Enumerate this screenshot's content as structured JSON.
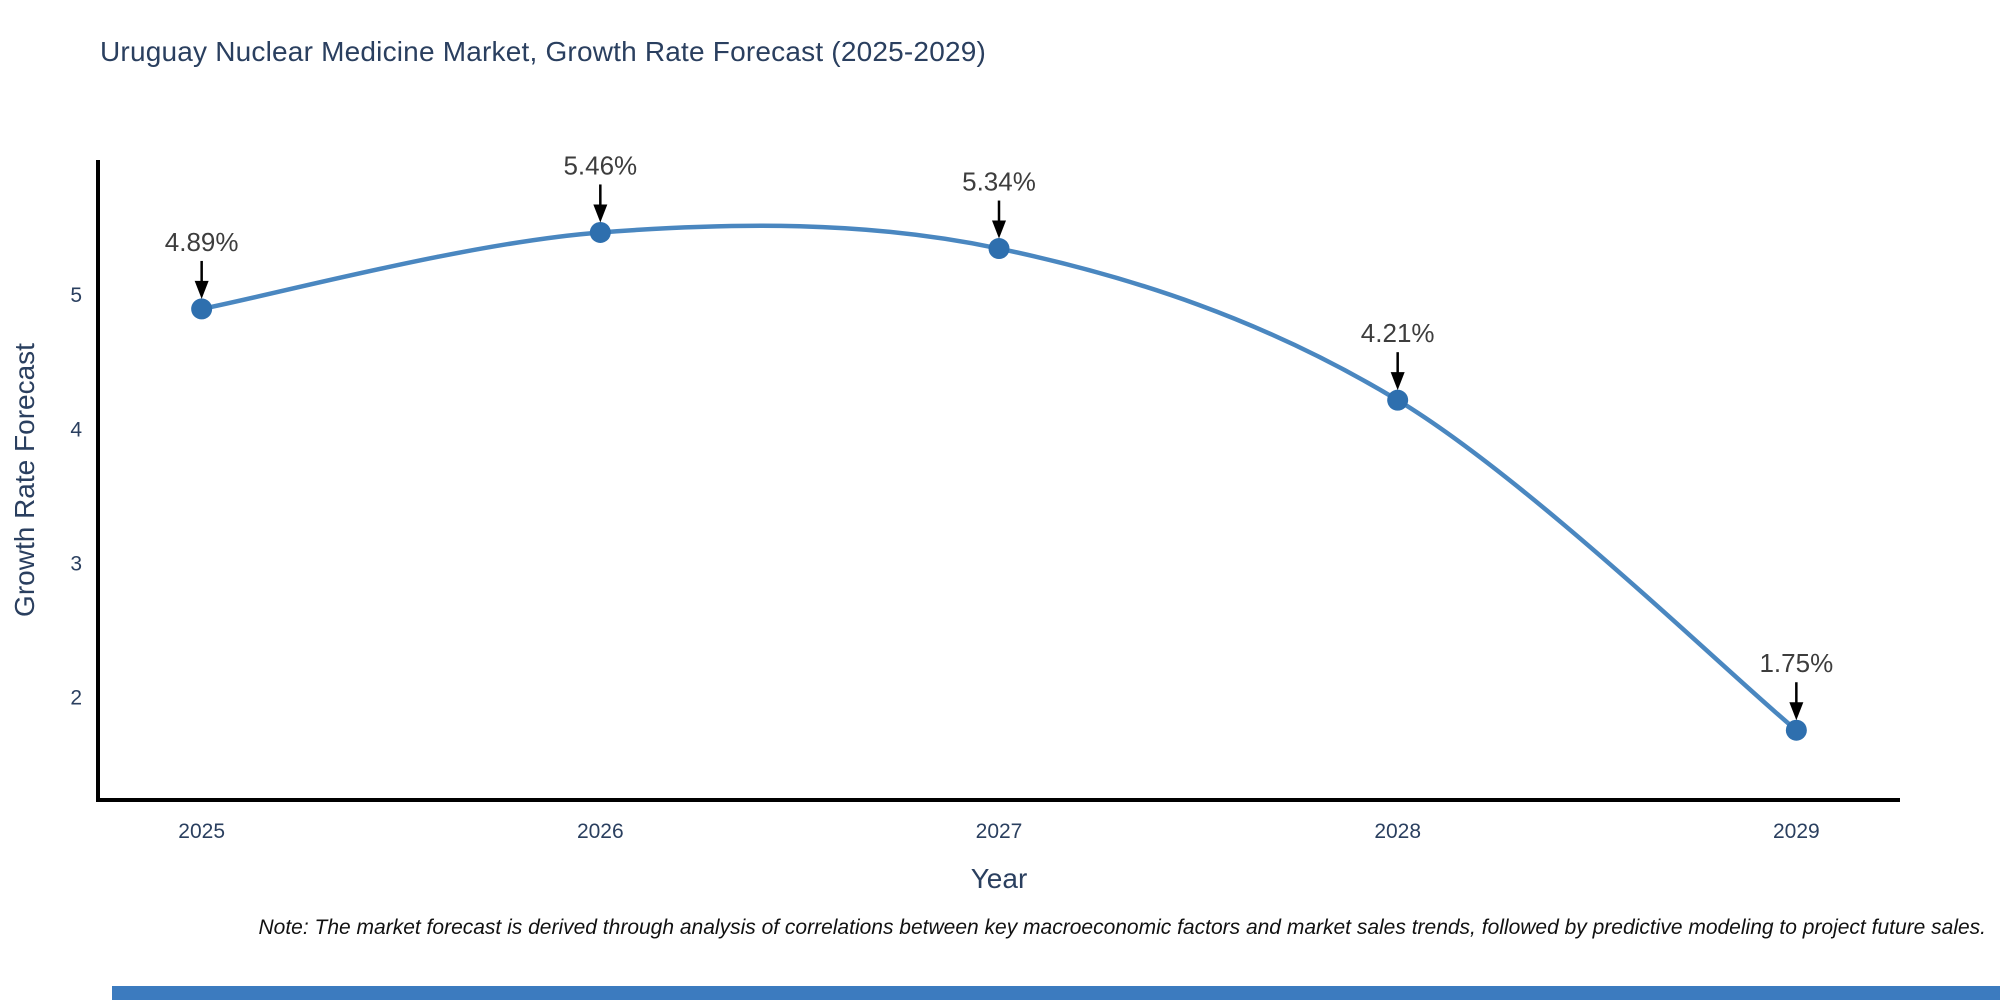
{
  "page": {
    "accent_bar_color": "#3c7bbf"
  },
  "chart_data": {
    "type": "line",
    "title": "Uruguay Nuclear Medicine Market, Growth Rate Forecast (2025-2029)",
    "xlabel": "Year",
    "ylabel": "Growth Rate Forecast",
    "categories": [
      "2025",
      "2026",
      "2027",
      "2028",
      "2029"
    ],
    "x": [
      2025,
      2026,
      2027,
      2028,
      2029
    ],
    "values": [
      4.89,
      5.46,
      5.34,
      4.21,
      1.75
    ],
    "point_labels": [
      "4.89%",
      "5.46%",
      "5.34%",
      "4.21%",
      "1.75%"
    ],
    "yticks": [
      2,
      3,
      4,
      5
    ],
    "ylim": [
      1.23,
      6.0
    ],
    "xlim": [
      2024.74,
      2029.26
    ],
    "grid": false,
    "legend": "none",
    "smooth": true,
    "colors": {
      "line": "#4a87c0",
      "marker": "#2e6fae",
      "axis": "#000000",
      "tick_label": "#2a3f5f",
      "axis_title": "#2a3f5f",
      "annotation": "#3d3d3d",
      "arrow": "#000000"
    }
  },
  "note": {
    "text": "Note: The market forecast is derived through analysis of correlations between key macroeconomic factors and market sales trends, followed by predictive modeling to project future sales."
  }
}
